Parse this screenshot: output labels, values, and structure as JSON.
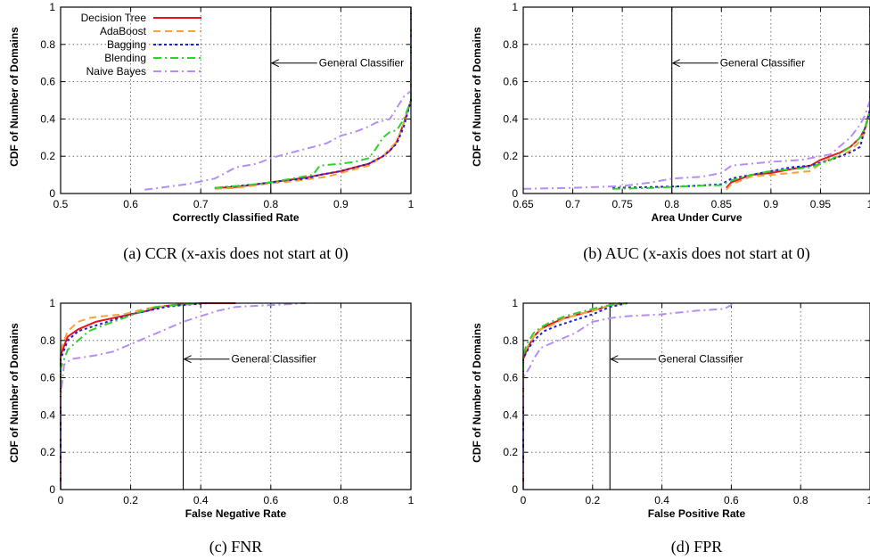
{
  "charts": [
    {
      "caption": "(a) CCR (x-axis does not start at 0)",
      "chart_data": {
        "type": "line",
        "xlabel": "Correctly Classified Rate",
        "ylabel": "CDF of Number of Domains",
        "xlim": [
          0.5,
          1
        ],
        "ylim": [
          0,
          1
        ],
        "xticks": [
          "0.5",
          "0.6",
          "0.7",
          "0.8",
          "0.9",
          "1"
        ],
        "yticks": [
          "0",
          "0.2",
          "0.4",
          "0.6",
          "0.8",
          "1"
        ],
        "grid": true,
        "legend": "top-left",
        "annotation": {
          "text": "General Classifier",
          "x": 0.8,
          "y": 0.7
        },
        "series": [
          {
            "name": "Decision Tree",
            "x": [
              0.72,
              0.75,
              0.78,
              0.8,
              0.82,
              0.85,
              0.87,
              0.9,
              0.92,
              0.94,
              0.96,
              0.97,
              0.98,
              0.99,
              1,
              1
            ],
            "y": [
              0.03,
              0.035,
              0.05,
              0.06,
              0.07,
              0.085,
              0.1,
              0.12,
              0.14,
              0.16,
              0.2,
              0.23,
              0.28,
              0.38,
              0.5,
              1
            ]
          },
          {
            "name": "AdaBoost",
            "x": [
              0.72,
              0.75,
              0.78,
              0.8,
              0.83,
              0.86,
              0.88,
              0.9,
              0.92,
              0.94,
              0.96,
              0.97,
              0.98,
              0.99,
              1,
              1
            ],
            "y": [
              0.025,
              0.03,
              0.045,
              0.055,
              0.065,
              0.08,
              0.09,
              0.11,
              0.13,
              0.15,
              0.2,
              0.24,
              0.28,
              0.38,
              0.5,
              1
            ]
          },
          {
            "name": "Bagging",
            "x": [
              0.72,
              0.75,
              0.78,
              0.8,
              0.82,
              0.85,
              0.87,
              0.9,
              0.92,
              0.94,
              0.96,
              0.97,
              0.98,
              0.99,
              1,
              1
            ],
            "y": [
              0.03,
              0.04,
              0.05,
              0.06,
              0.07,
              0.08,
              0.1,
              0.12,
              0.14,
              0.16,
              0.2,
              0.23,
              0.27,
              0.36,
              0.5,
              1
            ]
          },
          {
            "name": "Blending",
            "x": [
              0.72,
              0.75,
              0.78,
              0.8,
              0.83,
              0.86,
              0.87,
              0.9,
              0.92,
              0.94,
              0.95,
              0.96,
              0.97,
              0.98,
              0.99,
              1,
              1
            ],
            "y": [
              0.03,
              0.04,
              0.05,
              0.06,
              0.08,
              0.1,
              0.15,
              0.16,
              0.17,
              0.19,
              0.24,
              0.3,
              0.33,
              0.34,
              0.4,
              0.5,
              1
            ]
          },
          {
            "name": "Naive Bayes",
            "x": [
              0.62,
              0.68,
              0.72,
              0.73,
              0.75,
              0.78,
              0.8,
              0.83,
              0.86,
              0.88,
              0.9,
              0.92,
              0.94,
              0.95,
              0.97,
              0.99,
              1,
              1
            ],
            "y": [
              0.02,
              0.05,
              0.08,
              0.1,
              0.14,
              0.16,
              0.19,
              0.22,
              0.25,
              0.27,
              0.31,
              0.33,
              0.36,
              0.38,
              0.4,
              0.52,
              0.55,
              1
            ]
          }
        ]
      }
    },
    {
      "caption": "(b) AUC (x-axis does not start at 0)",
      "chart_data": {
        "type": "line",
        "xlabel": "Area Under Curve",
        "ylabel": "CDF of Number of Domains",
        "xlim": [
          0.65,
          1
        ],
        "ylim": [
          0,
          1
        ],
        "xticks": [
          "0.65",
          "0.7",
          "0.75",
          "0.8",
          "0.85",
          "0.9",
          "0.95",
          "1"
        ],
        "yticks": [
          "0",
          "0.2",
          "0.4",
          "0.6",
          "0.8",
          "1"
        ],
        "grid": true,
        "annotation": {
          "text": "General Classifier",
          "x": 0.8,
          "y": 0.7
        },
        "series": [
          {
            "name": "Decision Tree",
            "x": [
              0.855,
              0.86,
              0.87,
              0.88,
              0.9,
              0.92,
              0.94,
              0.95,
              0.96,
              0.97,
              0.98,
              0.99,
              0.995,
              1,
              1
            ],
            "y": [
              0.03,
              0.06,
              0.08,
              0.1,
              0.11,
              0.13,
              0.15,
              0.18,
              0.2,
              0.22,
              0.25,
              0.3,
              0.35,
              0.45,
              1
            ]
          },
          {
            "name": "AdaBoost",
            "x": [
              0.855,
              0.86,
              0.87,
              0.88,
              0.9,
              0.92,
              0.94,
              0.95,
              0.96,
              0.97,
              0.98,
              0.99,
              0.995,
              1,
              1
            ],
            "y": [
              0.02,
              0.05,
              0.07,
              0.09,
              0.1,
              0.11,
              0.12,
              0.16,
              0.19,
              0.2,
              0.23,
              0.28,
              0.33,
              0.45,
              1
            ]
          },
          {
            "name": "Bagging",
            "x": [
              0.74,
              0.78,
              0.82,
              0.85,
              0.86,
              0.88,
              0.9,
              0.92,
              0.94,
              0.96,
              0.98,
              0.99,
              0.995,
              1,
              1
            ],
            "y": [
              0.03,
              0.035,
              0.04,
              0.05,
              0.08,
              0.1,
              0.12,
              0.14,
              0.15,
              0.18,
              0.22,
              0.25,
              0.35,
              0.45,
              1
            ]
          },
          {
            "name": "Blending",
            "x": [
              0.74,
              0.78,
              0.82,
              0.85,
              0.86,
              0.88,
              0.9,
              0.92,
              0.94,
              0.96,
              0.98,
              0.99,
              0.995,
              1,
              1
            ],
            "y": [
              0.025,
              0.03,
              0.04,
              0.045,
              0.07,
              0.1,
              0.12,
              0.13,
              0.14,
              0.18,
              0.25,
              0.3,
              0.35,
              0.45,
              1
            ]
          },
          {
            "name": "Naive Bayes",
            "x": [
              0.65,
              0.7,
              0.75,
              0.78,
              0.8,
              0.83,
              0.85,
              0.86,
              0.88,
              0.9,
              0.93,
              0.96,
              0.98,
              0.99,
              0.995,
              1,
              1
            ],
            "y": [
              0.025,
              0.03,
              0.04,
              0.06,
              0.08,
              0.09,
              0.11,
              0.15,
              0.16,
              0.17,
              0.18,
              0.21,
              0.3,
              0.37,
              0.42,
              0.5,
              1
            ]
          }
        ]
      }
    },
    {
      "caption": "(c) FNR",
      "chart_data": {
        "type": "line",
        "xlabel": "False Negative Rate",
        "ylabel": "CDF of Number of Domains",
        "xlim": [
          0,
          1
        ],
        "ylim": [
          0,
          1
        ],
        "xticks": [
          "0",
          "0.2",
          "0.4",
          "0.6",
          "0.8",
          "1"
        ],
        "yticks": [
          "0",
          "0.2",
          "0.4",
          "0.6",
          "0.8",
          "1"
        ],
        "grid": true,
        "annotation": {
          "text": "General Classifier",
          "x": 0.35,
          "y": 0.7
        },
        "series": [
          {
            "name": "Decision Tree",
            "x": [
              0,
              0,
              0.02,
              0.05,
              0.1,
              0.15,
              0.2,
              0.25,
              0.28,
              0.32,
              0.4,
              0.5
            ],
            "y": [
              0,
              0.72,
              0.82,
              0.86,
              0.9,
              0.92,
              0.94,
              0.96,
              0.98,
              0.99,
              1,
              1
            ]
          },
          {
            "name": "AdaBoost",
            "x": [
              0,
              0,
              0.02,
              0.05,
              0.08,
              0.12,
              0.18,
              0.22,
              0.27,
              0.33,
              0.4
            ],
            "y": [
              0,
              0.75,
              0.85,
              0.9,
              0.92,
              0.93,
              0.94,
              0.96,
              0.98,
              0.99,
              1
            ]
          },
          {
            "name": "Bagging",
            "x": [
              0,
              0,
              0.02,
              0.05,
              0.1,
              0.15,
              0.2,
              0.25,
              0.3,
              0.35,
              0.42
            ],
            "y": [
              0,
              0.7,
              0.8,
              0.85,
              0.88,
              0.91,
              0.94,
              0.96,
              0.98,
              0.99,
              1
            ]
          },
          {
            "name": "Blending",
            "x": [
              0,
              0,
              0.02,
              0.05,
              0.08,
              0.12,
              0.18,
              0.22,
              0.27,
              0.33,
              0.4
            ],
            "y": [
              0,
              0.65,
              0.75,
              0.8,
              0.85,
              0.88,
              0.92,
              0.95,
              0.98,
              0.99,
              1
            ]
          },
          {
            "name": "Naive Bayes",
            "x": [
              0,
              0,
              0.01,
              0.03,
              0.1,
              0.15,
              0.2,
              0.25,
              0.3,
              0.35,
              0.4,
              0.45,
              0.5,
              0.6,
              0.7
            ],
            "y": [
              0,
              0.5,
              0.67,
              0.7,
              0.72,
              0.74,
              0.78,
              0.82,
              0.86,
              0.9,
              0.93,
              0.96,
              0.98,
              0.99,
              1
            ]
          }
        ]
      }
    },
    {
      "caption": "(d) FPR",
      "chart_data": {
        "type": "line",
        "xlabel": "False Positive Rate",
        "ylabel": "CDF of Number of Domains",
        "xlim": [
          0,
          1
        ],
        "ylim": [
          0,
          1
        ],
        "xticks": [
          "0",
          "0.2",
          "0.4",
          "0.6",
          "0.8",
          "1"
        ],
        "yticks": [
          "0",
          "0.2",
          "0.4",
          "0.6",
          "0.8",
          "1"
        ],
        "grid": true,
        "annotation": {
          "text": "General Classifier",
          "x": 0.25,
          "y": 0.7
        },
        "series": [
          {
            "name": "Decision Tree",
            "x": [
              0,
              0,
              0.01,
              0.03,
              0.05,
              0.08,
              0.12,
              0.18,
              0.22,
              0.25,
              0.28
            ],
            "y": [
              0,
              0.7,
              0.75,
              0.82,
              0.86,
              0.89,
              0.92,
              0.95,
              0.97,
              0.99,
              1
            ]
          },
          {
            "name": "AdaBoost",
            "x": [
              0,
              0,
              0.01,
              0.03,
              0.05,
              0.08,
              0.12,
              0.18,
              0.22,
              0.25,
              0.3
            ],
            "y": [
              0,
              0.72,
              0.76,
              0.82,
              0.86,
              0.88,
              0.92,
              0.95,
              0.97,
              0.99,
              1
            ]
          },
          {
            "name": "Bagging",
            "x": [
              0,
              0,
              0.01,
              0.03,
              0.06,
              0.1,
              0.15,
              0.2,
              0.25,
              0.3
            ],
            "y": [
              0,
              0.7,
              0.74,
              0.8,
              0.85,
              0.88,
              0.91,
              0.94,
              0.98,
              1
            ]
          },
          {
            "name": "Blending",
            "x": [
              0,
              0,
              0.01,
              0.03,
              0.05,
              0.08,
              0.12,
              0.16,
              0.2,
              0.25,
              0.3
            ],
            "y": [
              0,
              0.72,
              0.78,
              0.84,
              0.87,
              0.9,
              0.93,
              0.95,
              0.97,
              0.99,
              1
            ]
          },
          {
            "name": "Naive Bayes",
            "x": [
              0,
              0,
              0.02,
              0.03,
              0.05,
              0.1,
              0.15,
              0.2,
              0.25,
              0.3,
              0.4,
              0.5,
              0.58,
              0.6,
              0.6
            ],
            "y": [
              0,
              0.6,
              0.66,
              0.7,
              0.76,
              0.8,
              0.84,
              0.9,
              0.92,
              0.93,
              0.94,
              0.96,
              0.97,
              0.99,
              1
            ]
          }
        ]
      }
    }
  ],
  "series_styles": [
    {
      "name": "Decision Tree",
      "color": "#e8141c",
      "dash": "solid"
    },
    {
      "name": "AdaBoost",
      "color": "#f4a43a",
      "dash": "dashed"
    },
    {
      "name": "Bagging",
      "color": "#1c20d4",
      "dash": "dotted"
    },
    {
      "name": "Blending",
      "color": "#2ed12e",
      "dash": "dash-dot"
    },
    {
      "name": "Naive Bayes",
      "color": "#b48ef5",
      "dash": "dash-dot"
    }
  ]
}
